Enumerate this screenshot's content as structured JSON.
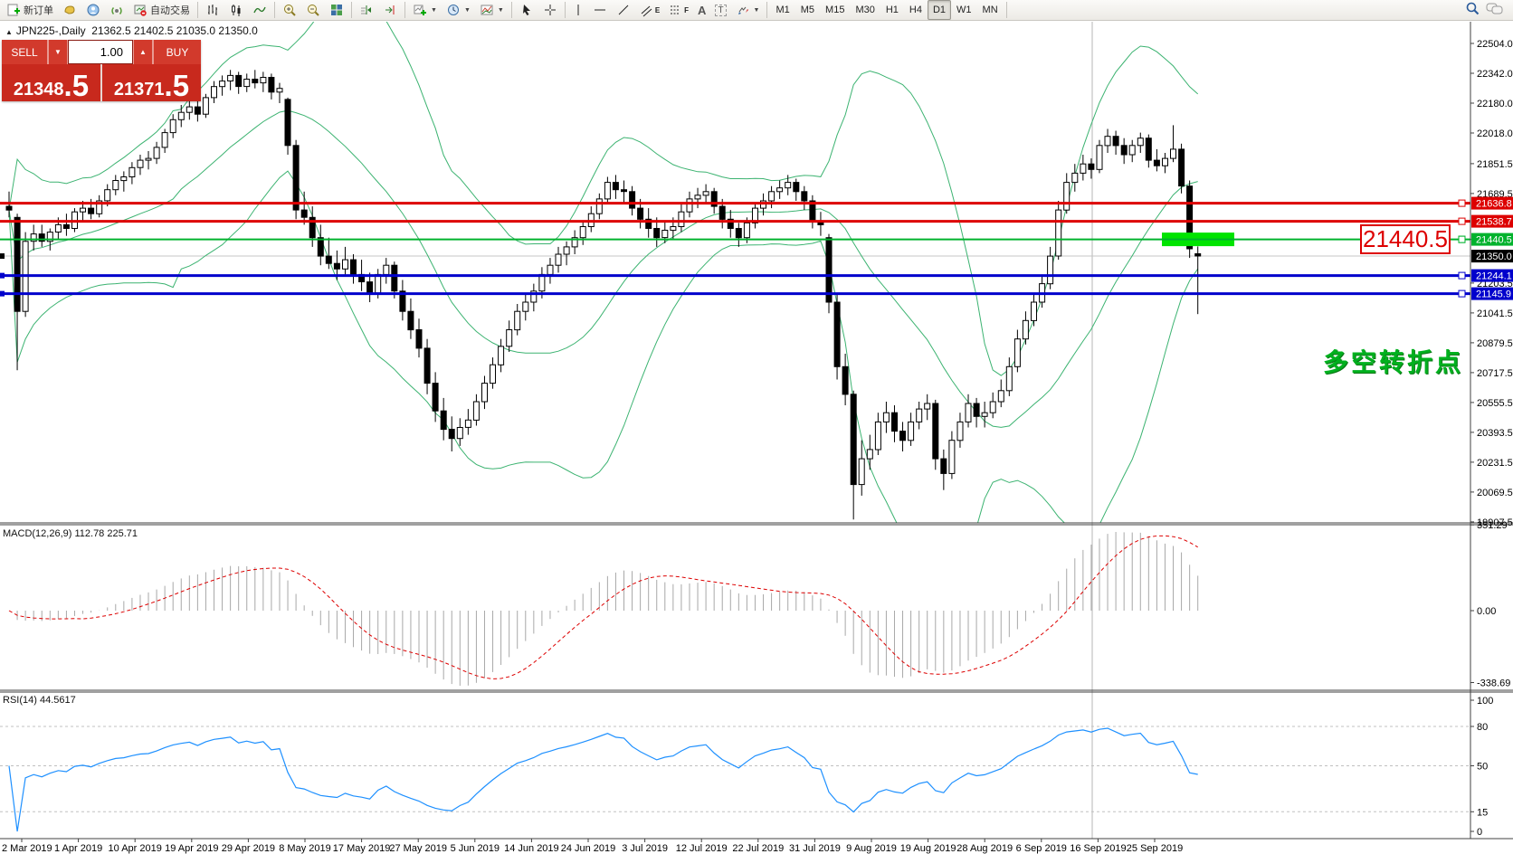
{
  "toolbar": {
    "new_order_label": "新订单",
    "autotrading_label": "自动交易",
    "caret": "▼",
    "tool_letters": {
      "channel": "E",
      "fibo": "F",
      "text": "A",
      "label": "T"
    },
    "timeframes": [
      "M1",
      "M5",
      "M15",
      "M30",
      "H1",
      "H4",
      "D1",
      "W1",
      "MN"
    ],
    "active_timeframe": "D1"
  },
  "chart": {
    "collapse_arrow": "▲",
    "title_symbol": "JPN225-,Daily",
    "title_ohlc": "21362.5 21402.5 21035.0 21350.0",
    "trade_panel": {
      "sell_label": "SELL",
      "buy_label": "BUY",
      "volume": "1.00",
      "sell_price_main": "21348",
      "sell_price_big": ".5",
      "buy_price_main": "21371",
      "buy_price_big": ".5"
    },
    "annotations": {
      "price_callout": "21440.5",
      "note": "多空转折点"
    }
  },
  "indicators": {
    "macd_label": "MACD(12,26,9) 112.78 225.71",
    "rsi_label": "RSI(14) 44.5617"
  },
  "chart_data": {
    "type": "candlestick",
    "symbol": "JPN225-",
    "timeframe": "Daily",
    "current_bar": {
      "open": 21362.5,
      "high": 21402.5,
      "low": 21035.0,
      "close": 21350.0
    },
    "y_axis": {
      "ticks": [
        {
          "label": "22504.0",
          "price": 22504.0
        },
        {
          "label": "22342.0",
          "price": 22342.0
        },
        {
          "label": "22180.0",
          "price": 22180.0
        },
        {
          "label": "22018.0",
          "price": 22018.0
        },
        {
          "label": "21851.5",
          "price": 21851.5
        },
        {
          "label": "21689.5",
          "price": 21689.5
        },
        {
          "label": "21203.5",
          "price": 21203.5
        },
        {
          "label": "21041.5",
          "price": 21041.5
        },
        {
          "label": "20879.5",
          "price": 20879.5
        },
        {
          "label": "20717.5",
          "price": 20717.5
        },
        {
          "label": "20555.5",
          "price": 20555.5
        },
        {
          "label": "20393.5",
          "price": 20393.5
        },
        {
          "label": "20231.5",
          "price": 20231.5
        },
        {
          "label": "20069.5",
          "price": 20069.5
        },
        {
          "label": "19907.5",
          "price": 19907.5
        }
      ]
    },
    "x_axis": {
      "labels": [
        "2 Mar 2019",
        "1 Apr 2019",
        "10 Apr 2019",
        "19 Apr 2019",
        "29 Apr 2019",
        "8 May 2019",
        "17 May 2019",
        "27 May 2019",
        "5 Jun 2019",
        "14 Jun 2019",
        "24 Jun 2019",
        "3 Jul 2019",
        "12 Jul 2019",
        "22 Jul 2019",
        "31 Jul 2019",
        "9 Aug 2019",
        "19 Aug 2019",
        "28 Aug 2019",
        "6 Sep 2019",
        "16 Sep 2019",
        "25 Sep 2019"
      ]
    },
    "horizontal_lines": [
      {
        "price": 21636.8,
        "label": "21636.8",
        "color": "#dd0000",
        "width": 3
      },
      {
        "price": 21538.7,
        "label": "21538.7",
        "color": "#dd0000",
        "width": 3
      },
      {
        "price": 21440.5,
        "label": "21440.5",
        "color": "#00b22d",
        "width": 2
      },
      {
        "price": 21244.1,
        "label": "21244.1",
        "color": "#0000cc",
        "width": 3
      },
      {
        "price": 21145.9,
        "label": "21145.9",
        "color": "#0000cc",
        "width": 3
      }
    ],
    "current_price": {
      "price": 21350.0,
      "label": "21350.0"
    },
    "highlight_rect": {
      "price": 21440.5,
      "color": "#00e400"
    },
    "bollinger": {
      "period": 20,
      "deviation": 2,
      "color": "#3cb371"
    },
    "macd": {
      "fast": 12,
      "slow": 26,
      "signal_period": 9,
      "current_macd": 112.78,
      "current_signal": 225.71,
      "axis": [
        {
          "label": "351.29",
          "v": 351.29
        },
        {
          "label": "0.00",
          "v": 0
        },
        {
          "label": "-338.69",
          "v": -338.69
        }
      ]
    },
    "rsi": {
      "period": 14,
      "current": 44.5617,
      "levels": [
        80,
        50,
        15
      ],
      "axis": [
        {
          "label": "100",
          "v": 100
        },
        {
          "label": "80",
          "v": 80
        },
        {
          "label": "50",
          "v": 50
        },
        {
          "label": "15",
          "v": 15
        },
        {
          "label": "0",
          "v": 0
        }
      ]
    },
    "ohlc": [
      [
        21620,
        21700,
        21560,
        21600
      ],
      [
        21560,
        21580,
        20730,
        21050
      ],
      [
        21050,
        21480,
        21020,
        21430
      ],
      [
        21430,
        21520,
        21380,
        21470
      ],
      [
        21470,
        21520,
        21400,
        21430
      ],
      [
        21430,
        21500,
        21380,
        21480
      ],
      [
        21480,
        21560,
        21440,
        21520
      ],
      [
        21520,
        21580,
        21460,
        21500
      ],
      [
        21500,
        21610,
        21480,
        21590
      ],
      [
        21590,
        21650,
        21540,
        21610
      ],
      [
        21610,
        21660,
        21550,
        21580
      ],
      [
        21580,
        21680,
        21560,
        21650
      ],
      [
        21650,
        21740,
        21620,
        21710
      ],
      [
        21710,
        21790,
        21680,
        21760
      ],
      [
        21760,
        21810,
        21700,
        21780
      ],
      [
        21780,
        21860,
        21740,
        21830
      ],
      [
        21830,
        21900,
        21790,
        21870
      ],
      [
        21870,
        21920,
        21820,
        21880
      ],
      [
        21880,
        21970,
        21850,
        21940
      ],
      [
        21940,
        22040,
        21910,
        22020
      ],
      [
        22020,
        22120,
        21990,
        22090
      ],
      [
        22090,
        22170,
        22050,
        22130
      ],
      [
        22130,
        22200,
        22090,
        22160
      ],
      [
        22160,
        22190,
        22080,
        22120
      ],
      [
        22120,
        22230,
        22100,
        22210
      ],
      [
        22210,
        22300,
        22180,
        22270
      ],
      [
        22270,
        22330,
        22220,
        22300
      ],
      [
        22300,
        22360,
        22250,
        22330
      ],
      [
        22330,
        22350,
        22230,
        22270
      ],
      [
        22270,
        22340,
        22240,
        22310
      ],
      [
        22310,
        22360,
        22260,
        22290
      ],
      [
        22290,
        22350,
        22240,
        22320
      ],
      [
        22320,
        22340,
        22200,
        22240
      ],
      [
        22240,
        22290,
        22180,
        22260
      ],
      [
        22200,
        22210,
        21900,
        21950
      ],
      [
        21950,
        21980,
        21550,
        21600
      ],
      [
        21600,
        21700,
        21520,
        21560
      ],
      [
        21560,
        21620,
        21400,
        21450
      ],
      [
        21450,
        21520,
        21300,
        21350
      ],
      [
        21350,
        21450,
        21280,
        21310
      ],
      [
        21310,
        21380,
        21220,
        21280
      ],
      [
        21280,
        21400,
        21250,
        21330
      ],
      [
        21330,
        21360,
        21200,
        21250
      ],
      [
        21250,
        21330,
        21160,
        21210
      ],
      [
        21210,
        21260,
        21100,
        21150
      ],
      [
        21150,
        21280,
        21120,
        21250
      ],
      [
        21250,
        21340,
        21200,
        21300
      ],
      [
        21300,
        21320,
        21120,
        21160
      ],
      [
        21160,
        21220,
        21000,
        21050
      ],
      [
        21050,
        21120,
        20900,
        20950
      ],
      [
        20950,
        21010,
        20800,
        20850
      ],
      [
        20850,
        20900,
        20600,
        20660
      ],
      [
        20660,
        20720,
        20450,
        20510
      ],
      [
        20510,
        20580,
        20350,
        20410
      ],
      [
        20410,
        20480,
        20290,
        20360
      ],
      [
        20360,
        20470,
        20320,
        20420
      ],
      [
        20420,
        20520,
        20380,
        20460
      ],
      [
        20460,
        20600,
        20430,
        20560
      ],
      [
        20560,
        20700,
        20520,
        20660
      ],
      [
        20660,
        20800,
        20630,
        20760
      ],
      [
        20760,
        20900,
        20720,
        20860
      ],
      [
        20860,
        21000,
        20830,
        20950
      ],
      [
        20950,
        21090,
        20920,
        21050
      ],
      [
        21050,
        21150,
        21000,
        21100
      ],
      [
        21100,
        21200,
        21050,
        21160
      ],
      [
        21160,
        21290,
        21120,
        21250
      ],
      [
        21250,
        21340,
        21200,
        21300
      ],
      [
        21300,
        21400,
        21260,
        21360
      ],
      [
        21360,
        21430,
        21300,
        21400
      ],
      [
        21400,
        21490,
        21360,
        21450
      ],
      [
        21450,
        21540,
        21410,
        21510
      ],
      [
        21510,
        21620,
        21480,
        21580
      ],
      [
        21580,
        21690,
        21550,
        21660
      ],
      [
        21660,
        21780,
        21630,
        21750
      ],
      [
        21750,
        21790,
        21660,
        21710
      ],
      [
        21710,
        21760,
        21640,
        21700
      ],
      [
        21700,
        21730,
        21570,
        21610
      ],
      [
        21610,
        21660,
        21500,
        21550
      ],
      [
        21550,
        21610,
        21450,
        21500
      ],
      [
        21500,
        21560,
        21400,
        21450
      ],
      [
        21450,
        21540,
        21420,
        21490
      ],
      [
        21490,
        21560,
        21440,
        21510
      ],
      [
        21510,
        21630,
        21480,
        21590
      ],
      [
        21590,
        21700,
        21560,
        21660
      ],
      [
        21660,
        21720,
        21610,
        21680
      ],
      [
        21680,
        21740,
        21630,
        21700
      ],
      [
        21700,
        21720,
        21580,
        21620
      ],
      [
        21620,
        21660,
        21500,
        21550
      ],
      [
        21550,
        21600,
        21450,
        21500
      ],
      [
        21500,
        21530,
        21400,
        21450
      ],
      [
        21450,
        21560,
        21420,
        21530
      ],
      [
        21530,
        21640,
        21500,
        21610
      ],
      [
        21610,
        21690,
        21570,
        21650
      ],
      [
        21650,
        21730,
        21610,
        21700
      ],
      [
        21700,
        21760,
        21660,
        21720
      ],
      [
        21720,
        21790,
        21680,
        21750
      ],
      [
        21750,
        21770,
        21650,
        21700
      ],
      [
        21700,
        21730,
        21600,
        21650
      ],
      [
        21650,
        21680,
        21500,
        21540
      ],
      [
        21540,
        21590,
        21460,
        21520
      ],
      [
        21450,
        21470,
        21040,
        21100
      ],
      [
        21100,
        21150,
        20680,
        20750
      ],
      [
        20750,
        20820,
        20540,
        20600
      ],
      [
        20600,
        20620,
        19920,
        20110
      ],
      [
        20110,
        20350,
        20050,
        20250
      ],
      [
        20250,
        20380,
        20190,
        20300
      ],
      [
        20300,
        20500,
        20270,
        20450
      ],
      [
        20450,
        20560,
        20390,
        20500
      ],
      [
        20500,
        20540,
        20340,
        20400
      ],
      [
        20400,
        20450,
        20290,
        20350
      ],
      [
        20350,
        20500,
        20320,
        20450
      ],
      [
        20450,
        20560,
        20410,
        20520
      ],
      [
        20520,
        20600,
        20460,
        20550
      ],
      [
        20550,
        20570,
        20190,
        20250
      ],
      [
        20250,
        20300,
        20080,
        20170
      ],
      [
        20170,
        20400,
        20140,
        20350
      ],
      [
        20350,
        20500,
        20310,
        20450
      ],
      [
        20450,
        20600,
        20420,
        20550
      ],
      [
        20550,
        20580,
        20420,
        20480
      ],
      [
        20480,
        20560,
        20420,
        20500
      ],
      [
        20500,
        20610,
        20470,
        20560
      ],
      [
        20560,
        20680,
        20530,
        20620
      ],
      [
        20620,
        20800,
        20590,
        20750
      ],
      [
        20750,
        20950,
        20720,
        20900
      ],
      [
        20900,
        21050,
        20870,
        21000
      ],
      [
        21000,
        21150,
        20970,
        21100
      ],
      [
        21100,
        21250,
        21070,
        21200
      ],
      [
        21200,
        21400,
        21170,
        21350
      ],
      [
        21350,
        21650,
        21330,
        21600
      ],
      [
        21600,
        21800,
        21580,
        21750
      ],
      [
        21750,
        21850,
        21700,
        21800
      ],
      [
        21800,
        21900,
        21760,
        21850
      ],
      [
        21850,
        21880,
        21770,
        21820
      ],
      [
        21820,
        21980,
        21800,
        21950
      ],
      [
        21950,
        22040,
        21910,
        22000
      ],
      [
        22000,
        22030,
        21900,
        21950
      ],
      [
        21950,
        21990,
        21850,
        21900
      ],
      [
        21900,
        21980,
        21860,
        21950
      ],
      [
        21950,
        22020,
        21910,
        21990
      ],
      [
        21990,
        22010,
        21830,
        21870
      ],
      [
        21870,
        21930,
        21810,
        21840
      ],
      [
        21840,
        21910,
        21800,
        21880
      ],
      [
        21880,
        22060,
        21860,
        21930
      ],
      [
        21930,
        21960,
        21690,
        21730
      ],
      [
        21730,
        21760,
        21340,
        21390
      ],
      [
        21362.5,
        21402.5,
        21035,
        21350
      ]
    ]
  }
}
